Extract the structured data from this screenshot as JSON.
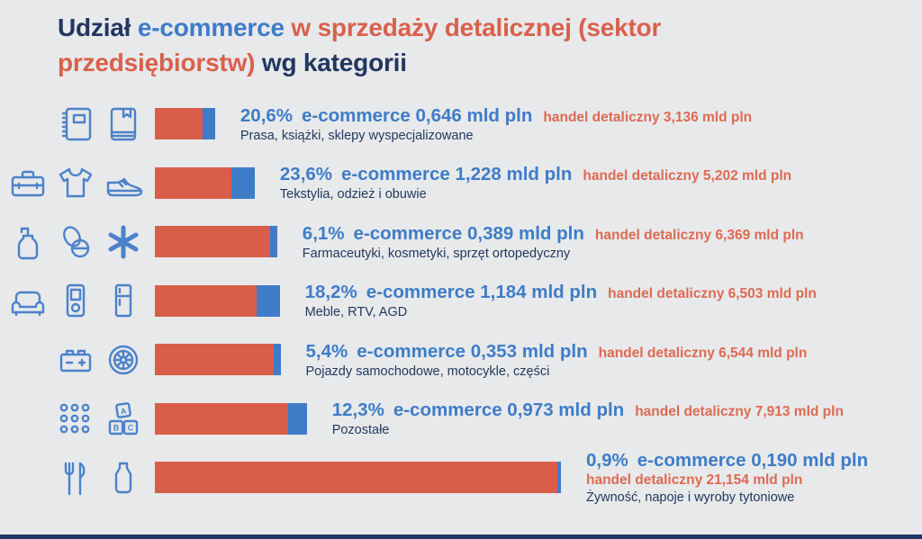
{
  "palette": {
    "background": "#e8e9eb",
    "navy": "#21375f",
    "blue": "#3e7cc8",
    "orange_bar": "#d95e49",
    "orange_text": "#dd6a53",
    "bottom_strip": "#1f3864"
  },
  "title": {
    "segments": [
      {
        "text": "Udział ",
        "color": "navy"
      },
      {
        "text": "e-commerce ",
        "color": "blue"
      },
      {
        "text": "w sprzedaży detalicznej (sektor przedsiębiorstw) ",
        "color": "orange"
      },
      {
        "text": "wg kategorii",
        "color": "navy"
      }
    ]
  },
  "chart_data": {
    "type": "bar",
    "orientation": "horizontal",
    "title": "Udział e-commerce w sprzedaży detalicznej (sektor przedsiębiorstw) wg kategorii",
    "bar_length_represents": "handel detaliczny (retail) value in mld pln",
    "blue_segment_represents": "e-commerce share of the bar (percent)",
    "legend": {
      "orange": "handel detaliczny",
      "blue": "e-commerce"
    },
    "rows": [
      {
        "category": "Prasa, książki, sklepy wyspecjalizowane",
        "share_pct": "20,6%",
        "share_value": 20.6,
        "ecommerce_label": "e-commerce 0,646 mld pln",
        "ecommerce_mld_pln": 0.646,
        "retail_label": "handel detaliczny 3,136 mld pln",
        "retail_mld_pln": 3.136,
        "icons": [
          "notebook-icon",
          "book-icon"
        ]
      },
      {
        "category": "Tekstylia, odzież i obuwie",
        "share_pct": "23,6%",
        "share_value": 23.6,
        "ecommerce_label": "e-commerce 1,228 mld pln",
        "ecommerce_mld_pln": 1.228,
        "retail_label": "handel detaliczny 5,202 mld pln",
        "retail_mld_pln": 5.202,
        "icons": [
          "toolbox-icon",
          "tshirt-icon",
          "sneaker-icon"
        ]
      },
      {
        "category": "Farmaceutyki, kosmetyki, sprzęt ortopedyczny",
        "share_pct": "6,1%",
        "share_value": 6.1,
        "ecommerce_label": "e-commerce 0,389 mld pln",
        "ecommerce_mld_pln": 0.389,
        "retail_label": "handel detaliczny 6,369 mld pln",
        "retail_mld_pln": 6.369,
        "icons": [
          "pump-bottle-icon",
          "pills-icon",
          "medical-asterisk-icon"
        ]
      },
      {
        "category": "Meble, RTV, AGD",
        "share_pct": "18,2%",
        "share_value": 18.2,
        "ecommerce_label": "e-commerce 1,184 mld pln",
        "ecommerce_mld_pln": 1.184,
        "retail_label": "handel detaliczny 6,503 mld pln",
        "retail_mld_pln": 6.503,
        "icons": [
          "sofa-icon",
          "media-player-icon",
          "fridge-icon"
        ]
      },
      {
        "category": "Pojazdy samochodowe, motocykle, części",
        "share_pct": "5,4%",
        "share_value": 5.4,
        "ecommerce_label": "e-commerce 0,353 mld pln",
        "ecommerce_mld_pln": 0.353,
        "retail_label": "handel detaliczny 6,544 mld pln",
        "retail_mld_pln": 6.544,
        "icons": [
          "car-battery-icon",
          "wheel-icon"
        ]
      },
      {
        "category": "Pozostałe",
        "share_pct": "12,3%",
        "share_value": 12.3,
        "ecommerce_label": "e-commerce 0,973 mld pln",
        "ecommerce_mld_pln": 0.973,
        "retail_label": "handel detaliczny 7,913 mld pln",
        "retail_mld_pln": 7.913,
        "icons": [
          "dots-grid-icon",
          "abc-blocks-icon"
        ]
      },
      {
        "category": "Żywność, napoje i wyroby tytoniowe",
        "share_pct": "0,9%",
        "share_value": 0.9,
        "ecommerce_label": "e-commerce 0,190 mld pln",
        "ecommerce_mld_pln": 0.19,
        "retail_label": "handel detaliczny 21,154 mld pln",
        "retail_mld_pln": 21.154,
        "icons": [
          "cutlery-icon",
          "milk-bottle-icon"
        ]
      }
    ]
  }
}
